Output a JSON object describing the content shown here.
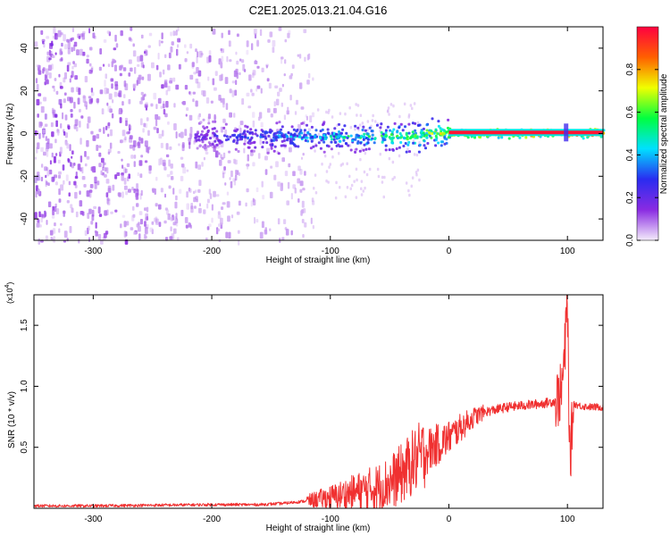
{
  "figure_title": "C2E1.2025.013.21.04.G16",
  "chart_data": [
    {
      "type": "heatmap",
      "title": "C2E1.2025.013.21.04.G16",
      "xlabel": "Height of straight line (km)",
      "ylabel": "Frequency (Hz)",
      "xlim": [
        -350,
        130
      ],
      "ylim": [
        -50,
        50
      ],
      "x_ticks": [
        -300,
        -200,
        -100,
        0,
        100
      ],
      "y_ticks": [
        -40,
        -20,
        0,
        20,
        40
      ],
      "grid": false,
      "colorbar": {
        "label": "Normalized spectral amplitude",
        "range": [
          0.0,
          1.0
        ],
        "ticks": [
          0.0,
          0.2,
          0.4,
          0.6,
          0.8
        ],
        "colors": [
          "#f4ecfb",
          "#8a2be2",
          "#2a2cf0",
          "#00e0ff",
          "#00ff40",
          "#f0ff00",
          "#ff6000",
          "#ff0040"
        ]
      },
      "features": [
        {
          "name": "noise-field",
          "x_range": [
            -350,
            -115
          ],
          "freq_range": [
            -50,
            50
          ],
          "amplitude": 0.05
        },
        {
          "name": "signal-band",
          "x_range": [
            -215,
            130
          ],
          "center_freq": 0,
          "amplitude_start": 0.2,
          "amplitude_end": 0.95
        }
      ]
    },
    {
      "type": "line",
      "xlabel": "Height of straight line (km)",
      "ylabel": "SNR (10 * v/v)",
      "y_multiplier": "(x10",
      "y_multiplier_exp": "4",
      "y_multiplier_close": ")",
      "xlim": [
        -350,
        130
      ],
      "ylim": [
        0,
        1.75
      ],
      "x_ticks": [
        -300,
        -200,
        -100,
        0,
        100
      ],
      "y_ticks": [
        0.5,
        1.0,
        1.5
      ],
      "y_tick_labels": [
        "0.5",
        "1.0",
        "1.5"
      ],
      "line_color": "#f03030",
      "grid": false,
      "series": [
        {
          "x": [
            -350,
            -300,
            -250,
            -200,
            -160,
            -140,
            -120,
            -100,
            -80,
            -60,
            -50,
            -40,
            -30,
            -20,
            -10,
            0,
            10,
            20,
            30,
            40,
            50,
            60,
            70,
            80,
            90,
            95,
            98,
            100,
            102,
            105,
            110,
            120,
            130
          ],
          "values": [
            0.02,
            0.02,
            0.025,
            0.03,
            0.03,
            0.04,
            0.06,
            0.09,
            0.13,
            0.17,
            0.21,
            0.28,
            0.38,
            0.46,
            0.52,
            0.58,
            0.66,
            0.74,
            0.79,
            0.81,
            0.83,
            0.84,
            0.85,
            0.86,
            0.88,
            0.95,
            1.3,
            1.75,
            0.35,
            0.86,
            0.84,
            0.83,
            0.83
          ]
        }
      ]
    }
  ]
}
